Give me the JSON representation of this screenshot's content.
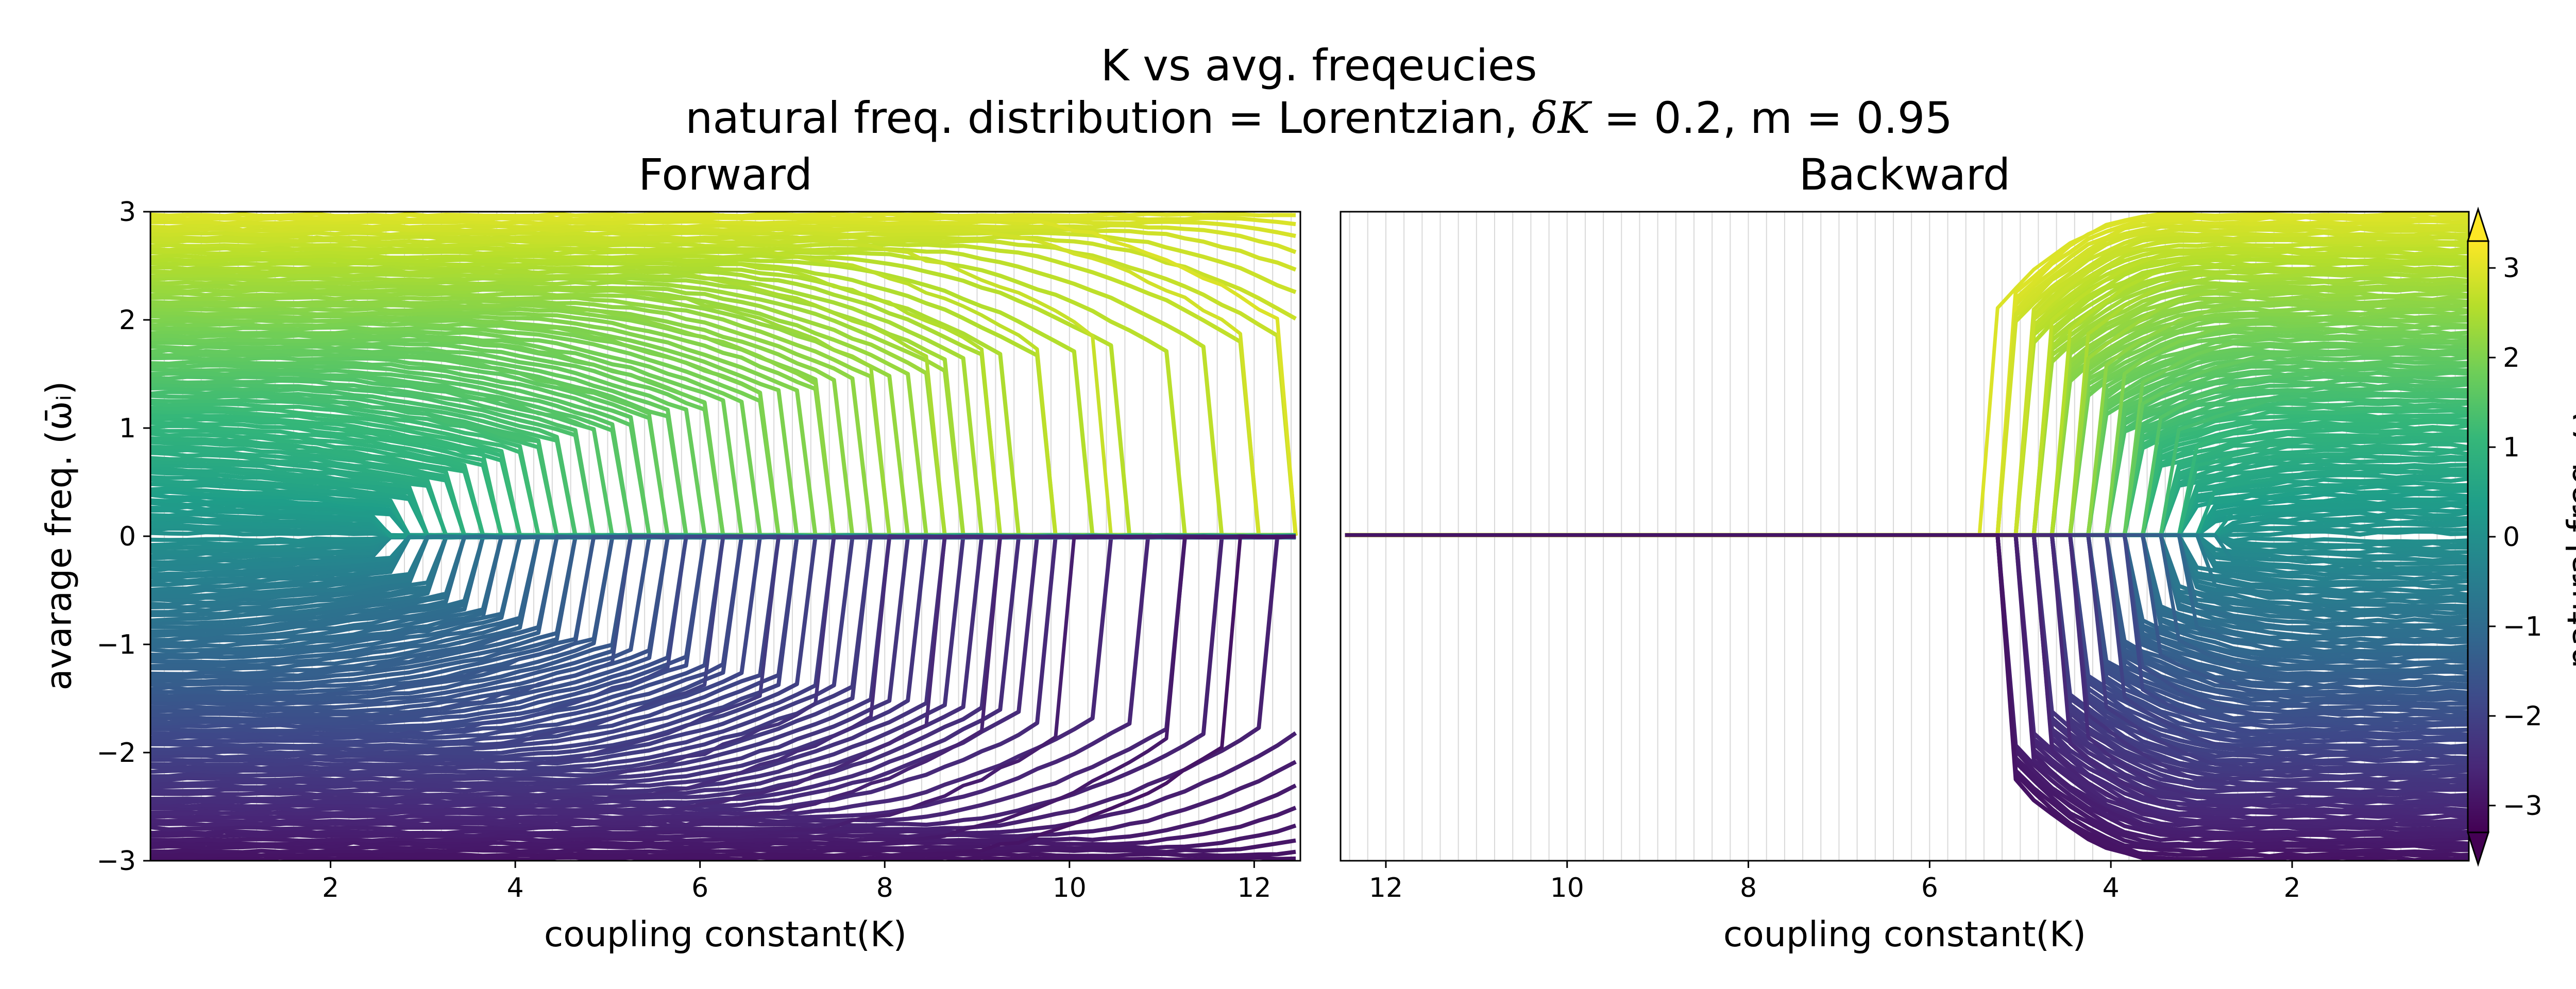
{
  "figure": {
    "title": "K vs avg. freqeucies",
    "subtitle_prefix": "natural freq. distribution = Lorentzian, ",
    "subtitle_delta": "δK",
    "subtitle_suffix": " = 0.2, m = 0.95"
  },
  "chart_data": [
    {
      "type": "line",
      "title": "Forward",
      "xlabel": "coupling constant(K)",
      "ylabel": "avarage freq. (ω̄ᵢ)",
      "xlim": [
        0.05,
        12.5
      ],
      "ylim": [
        -3,
        3
      ],
      "x_ticks": [
        2,
        4,
        6,
        8,
        10,
        12
      ],
      "y_ticks": [
        -3,
        -2,
        -1,
        0,
        1,
        2,
        3
      ],
      "grid": "vertical lines at each K step",
      "K_step": 0.2,
      "series_description": "one line per oscillator, colored by natural frequency; oscillators lock to ~0 at their locking K",
      "oscillator_locking_K": [
        {
          "omega": 2.95,
          "lock_K": 12.4
        },
        {
          "omega": 2.85,
          "lock_K": 11.9
        },
        {
          "omega": 2.75,
          "lock_K": 10.4
        },
        {
          "omega": 2.65,
          "lock_K": 9.7
        },
        {
          "omega": 2.55,
          "lock_K": 9.2
        },
        {
          "omega": 2.45,
          "lock_K": 8.6
        },
        {
          "omega": 2.3,
          "lock_K": 8.0
        },
        {
          "omega": 2.15,
          "lock_K": 7.3
        },
        {
          "omega": 2.0,
          "lock_K": 6.7
        },
        {
          "omega": 1.85,
          "lock_K": 6.1
        },
        {
          "omega": 1.7,
          "lock_K": 5.5
        },
        {
          "omega": 1.5,
          "lock_K": 4.9
        },
        {
          "omega": 1.3,
          "lock_K": 4.3
        },
        {
          "omega": 1.1,
          "lock_K": 3.8
        },
        {
          "omega": 0.9,
          "lock_K": 3.4
        },
        {
          "omega": 0.6,
          "lock_K": 3.0
        },
        {
          "omega": 0.3,
          "lock_K": 2.7
        },
        {
          "omega": -0.3,
          "lock_K": 2.7
        },
        {
          "omega": -0.6,
          "lock_K": 3.0
        },
        {
          "omega": -0.9,
          "lock_K": 3.4
        },
        {
          "omega": -1.1,
          "lock_K": 3.8
        },
        {
          "omega": -1.3,
          "lock_K": 4.3
        },
        {
          "omega": -1.5,
          "lock_K": 4.7
        },
        {
          "omega": -1.7,
          "lock_K": 5.2
        },
        {
          "omega": -1.85,
          "lock_K": 5.7
        },
        {
          "omega": -2.0,
          "lock_K": 6.2
        },
        {
          "omega": -2.15,
          "lock_K": 6.8
        },
        {
          "omega": -2.3,
          "lock_K": 7.4
        },
        {
          "omega": -2.45,
          "lock_K": 8.0
        },
        {
          "omega": -2.55,
          "lock_K": 8.6
        },
        {
          "omega": -2.65,
          "lock_K": 9.2
        },
        {
          "omega": -2.75,
          "lock_K": 10.0
        },
        {
          "omega": -2.85,
          "lock_K": 11.1
        },
        {
          "omega": -2.95,
          "lock_K": 11.7
        }
      ]
    },
    {
      "type": "line",
      "title": "Backward",
      "xlabel": "coupling constant(K)",
      "ylabel": "",
      "xlim": [
        12.5,
        0.05
      ],
      "ylim": [
        -3,
        3
      ],
      "x_ticks": [
        12,
        10,
        8,
        6,
        4,
        2
      ],
      "grid": "vertical lines at each K step",
      "K_step": 0.2,
      "series_description": "all oscillators locked at ~0 from K=12.5 down to ~5.3; they unlock progressively as K decreases",
      "oscillator_unlocking_K": [
        {
          "omega": 2.95,
          "unlock_K": 5.3
        },
        {
          "omega": 2.85,
          "unlock_K": 5.1
        },
        {
          "omega": 2.75,
          "unlock_K": 4.95
        },
        {
          "omega": 2.65,
          "unlock_K": 4.8
        },
        {
          "omega": 2.55,
          "unlock_K": 4.6
        },
        {
          "omega": 2.45,
          "unlock_K": 4.45
        },
        {
          "omega": 2.3,
          "unlock_K": 4.3
        },
        {
          "omega": 2.15,
          "unlock_K": 4.15
        },
        {
          "omega": 2.0,
          "unlock_K": 4.0
        },
        {
          "omega": 1.85,
          "unlock_K": 3.85
        },
        {
          "omega": 1.7,
          "unlock_K": 3.7
        },
        {
          "omega": 1.5,
          "unlock_K": 3.55
        },
        {
          "omega": 1.3,
          "unlock_K": 3.4
        },
        {
          "omega": 1.1,
          "unlock_K": 3.25
        },
        {
          "omega": 0.9,
          "unlock_K": 3.1
        },
        {
          "omega": 0.6,
          "unlock_K": 2.95
        },
        {
          "omega": 0.3,
          "unlock_K": 2.8
        },
        {
          "omega": -0.3,
          "unlock_K": 2.8
        },
        {
          "omega": -0.6,
          "unlock_K": 2.95
        },
        {
          "omega": -0.9,
          "unlock_K": 3.1
        },
        {
          "omega": -1.1,
          "unlock_K": 3.25
        },
        {
          "omega": -1.3,
          "unlock_K": 3.4
        },
        {
          "omega": -1.5,
          "unlock_K": 3.55
        },
        {
          "omega": -1.7,
          "unlock_K": 3.7
        },
        {
          "omega": -1.85,
          "unlock_K": 3.85
        },
        {
          "omega": -2.0,
          "unlock_K": 4.0
        },
        {
          "omega": -2.15,
          "unlock_K": 4.15
        },
        {
          "omega": -2.3,
          "unlock_K": 4.3
        },
        {
          "omega": -2.45,
          "unlock_K": 4.45
        },
        {
          "omega": -2.55,
          "unlock_K": 4.6
        },
        {
          "omega": -2.65,
          "unlock_K": 4.8
        },
        {
          "omega": -2.75,
          "unlock_K": 4.95
        },
        {
          "omega": -2.85,
          "unlock_K": 5.1
        },
        {
          "omega": -2.95,
          "unlock_K": 5.2
        }
      ]
    }
  ],
  "colorbar": {
    "label": "natural freq. ω",
    "label_sub": "i",
    "ticks": [
      -3,
      -2,
      -1,
      0,
      1,
      2,
      3
    ],
    "range": [
      -3.3,
      3.3
    ],
    "colormap": "viridis",
    "colormap_stops": [
      "#440154",
      "#482878",
      "#3e4989",
      "#31688e",
      "#26828e",
      "#1f9e89",
      "#35b779",
      "#6ece58",
      "#b5de2b",
      "#fde725"
    ],
    "extend": "both"
  }
}
